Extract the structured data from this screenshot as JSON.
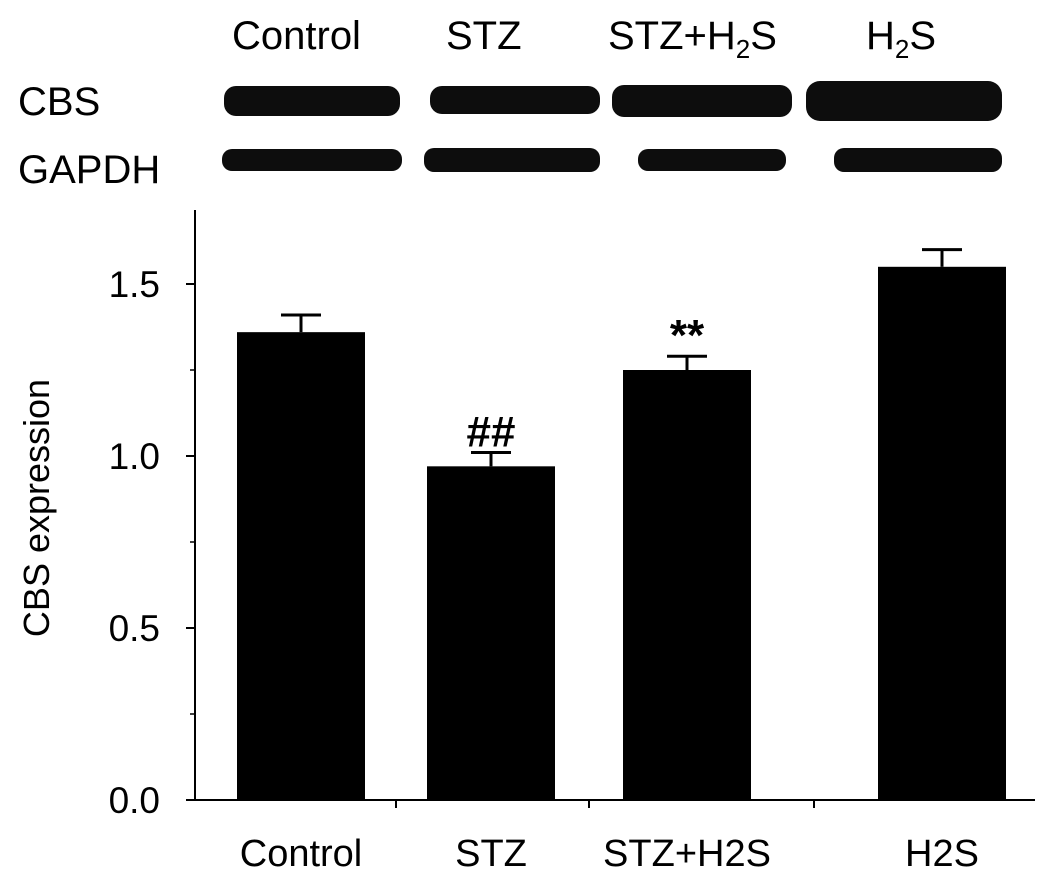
{
  "blot": {
    "lane_labels": [
      {
        "main": "Control",
        "sub": "",
        "tail": ""
      },
      {
        "main": "STZ",
        "sub": "",
        "tail": ""
      },
      {
        "main": "STZ+H",
        "sub": "2",
        "tail": "S"
      },
      {
        "main": "H",
        "sub": "2",
        "tail": "S"
      }
    ],
    "rows": [
      "CBS",
      "GAPDH"
    ]
  },
  "chart_data": {
    "type": "bar",
    "categories": [
      "Control",
      "STZ",
      "STZ+H2S",
      "H2S"
    ],
    "values": [
      1.36,
      0.97,
      1.25,
      1.55
    ],
    "errors": [
      0.05,
      0.04,
      0.04,
      0.05
    ],
    "annotations": [
      "",
      "##",
      "**",
      ""
    ],
    "ylabel": "CBS expression",
    "xlabel": "",
    "ylim": [
      0,
      1.7
    ],
    "yticks": [
      0.0,
      0.5,
      1.0,
      1.5
    ],
    "ytick_labels": [
      "0.0",
      "0.5",
      "1.0",
      "1.5"
    ],
    "bar_color": "#000000",
    "grid": false,
    "legend": "none"
  }
}
